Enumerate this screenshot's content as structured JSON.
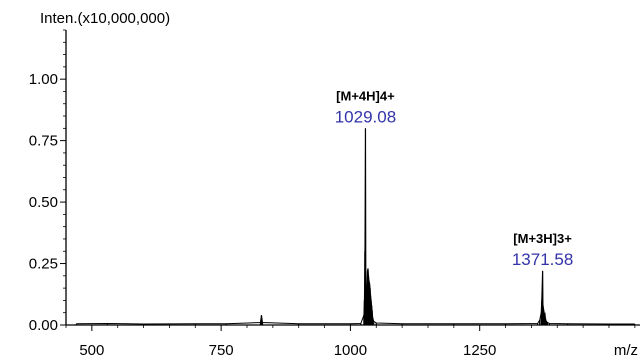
{
  "chart_data": {
    "type": "line",
    "ylabel": "Inten.(x10,000,000)",
    "xlabel": "m/z",
    "xlim": [
      450,
      1560
    ],
    "ylim": [
      0,
      1.2
    ],
    "x_ticks": [
      500,
      750,
      1000,
      1250
    ],
    "x_tick_labels": [
      "500",
      "750",
      "1000",
      "1250"
    ],
    "y_ticks": [
      0.0,
      0.25,
      0.5,
      0.75,
      1.0
    ],
    "y_tick_labels": [
      "0.00",
      "0.25",
      "0.50",
      "0.75",
      "1.00"
    ],
    "grid": false,
    "series": [
      {
        "x": [
          470,
          530,
          600,
          700,
          760,
          826,
          828,
          830,
          900,
          1000,
          1020,
          1026,
          1027,
          1028,
          1029.08,
          1030,
          1031,
          1032,
          1033,
          1034,
          1035,
          1036,
          1037,
          1038,
          1039,
          1040,
          1041,
          1042,
          1043,
          1045,
          1050,
          1100,
          1200,
          1300,
          1362,
          1366,
          1369,
          1370,
          1371.58,
          1372.5,
          1374,
          1375,
          1376,
          1377,
          1378,
          1379,
          1381,
          1385,
          1420,
          1500,
          1550
        ],
        "y": [
          0.005,
          0.006,
          0.004,
          0.005,
          0.005,
          0.01,
          0.04,
          0.01,
          0.005,
          0.005,
          0.006,
          0.04,
          0.1,
          0.3,
          0.8,
          0.14,
          0.1,
          0.17,
          0.22,
          0.23,
          0.2,
          0.18,
          0.17,
          0.15,
          0.12,
          0.1,
          0.08,
          0.06,
          0.03,
          0.015,
          0.008,
          0.005,
          0.005,
          0.005,
          0.006,
          0.02,
          0.05,
          0.1,
          0.22,
          0.08,
          0.06,
          0.04,
          0.05,
          0.03,
          0.02,
          0.015,
          0.01,
          0.006,
          0.005,
          0.004,
          0.004
        ]
      }
    ],
    "annotations": [
      {
        "x": 1029.08,
        "ion": "[M+4H]4+",
        "mz": "1029.08"
      },
      {
        "x": 1371.58,
        "ion": "[M+3H]3+",
        "mz": "1371.58"
      }
    ]
  }
}
